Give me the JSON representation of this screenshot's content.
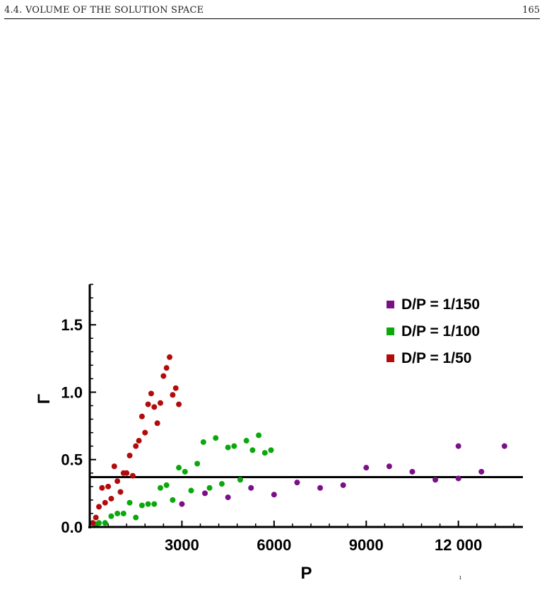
{
  "header": {
    "section": "4.4.  VOLUME OF THE SOLUTION SPACE",
    "page_number": "165"
  },
  "chart_data": {
    "type": "scatter",
    "xlabel": "P",
    "ylabel": "Γ",
    "xlim": [
      0,
      14100
    ],
    "ylim": [
      0,
      1.8
    ],
    "xticks": [
      3000,
      6000,
      9000,
      12000
    ],
    "xtick_labels": [
      "3000",
      "6000",
      "9000",
      "12 000"
    ],
    "yticks": [
      0.0,
      0.5,
      1.0,
      1.5
    ],
    "ytick_labels": [
      "0.0",
      "0.5",
      "1.0",
      "1.5"
    ],
    "hline": 0.37,
    "legend_position": "top-right",
    "series": [
      {
        "name": "D/P = 1/150",
        "color": "#7b0f87",
        "points": [
          [
            3000,
            0.17
          ],
          [
            3750,
            0.25
          ],
          [
            4500,
            0.22
          ],
          [
            5250,
            0.29
          ],
          [
            6000,
            0.24
          ],
          [
            6750,
            0.33
          ],
          [
            7500,
            0.29
          ],
          [
            8250,
            0.31
          ],
          [
            9000,
            0.44
          ],
          [
            9750,
            0.45
          ],
          [
            10500,
            0.41
          ],
          [
            11250,
            0.35
          ],
          [
            12000,
            0.36
          ],
          [
            12000,
            0.6
          ],
          [
            12750,
            0.41
          ],
          [
            13500,
            0.6
          ]
        ]
      },
      {
        "name": "D/P = 1/100",
        "color": "#0aa80a",
        "points": [
          [
            200,
            0.02
          ],
          [
            300,
            0.03
          ],
          [
            500,
            0.03
          ],
          [
            700,
            0.08
          ],
          [
            900,
            0.1
          ],
          [
            1100,
            0.1
          ],
          [
            1300,
            0.18
          ],
          [
            1500,
            0.07
          ],
          [
            1700,
            0.16
          ],
          [
            1900,
            0.17
          ],
          [
            2100,
            0.17
          ],
          [
            2300,
            0.29
          ],
          [
            2500,
            0.31
          ],
          [
            2700,
            0.2
          ],
          [
            2900,
            0.44
          ],
          [
            3100,
            0.41
          ],
          [
            3300,
            0.27
          ],
          [
            3500,
            0.47
          ],
          [
            3700,
            0.63
          ],
          [
            3900,
            0.29
          ],
          [
            4100,
            0.66
          ],
          [
            4300,
            0.32
          ],
          [
            4500,
            0.59
          ],
          [
            4700,
            0.6
          ],
          [
            4900,
            0.35
          ],
          [
            5100,
            0.64
          ],
          [
            5300,
            0.57
          ],
          [
            5500,
            0.68
          ],
          [
            5700,
            0.55
          ],
          [
            5900,
            0.57
          ]
        ]
      },
      {
        "name": "D/P = 1/50",
        "color": "#b30b0b",
        "points": [
          [
            100,
            0.03
          ],
          [
            200,
            0.07
          ],
          [
            300,
            0.15
          ],
          [
            400,
            0.29
          ],
          [
            500,
            0.18
          ],
          [
            600,
            0.3
          ],
          [
            700,
            0.21
          ],
          [
            800,
            0.45
          ],
          [
            900,
            0.34
          ],
          [
            1000,
            0.26
          ],
          [
            1100,
            0.4
          ],
          [
            1200,
            0.4
          ],
          [
            1300,
            0.53
          ],
          [
            1400,
            0.38
          ],
          [
            1500,
            0.6
          ],
          [
            1600,
            0.64
          ],
          [
            1700,
            0.82
          ],
          [
            1800,
            0.7
          ],
          [
            1900,
            0.91
          ],
          [
            2000,
            0.99
          ],
          [
            2100,
            0.89
          ],
          [
            2200,
            0.77
          ],
          [
            2300,
            0.92
          ],
          [
            2400,
            1.12
          ],
          [
            2500,
            1.18
          ],
          [
            2600,
            1.26
          ],
          [
            2700,
            0.98
          ],
          [
            2800,
            1.03
          ],
          [
            2900,
            0.91
          ]
        ]
      }
    ]
  },
  "stray_mark": "ı"
}
